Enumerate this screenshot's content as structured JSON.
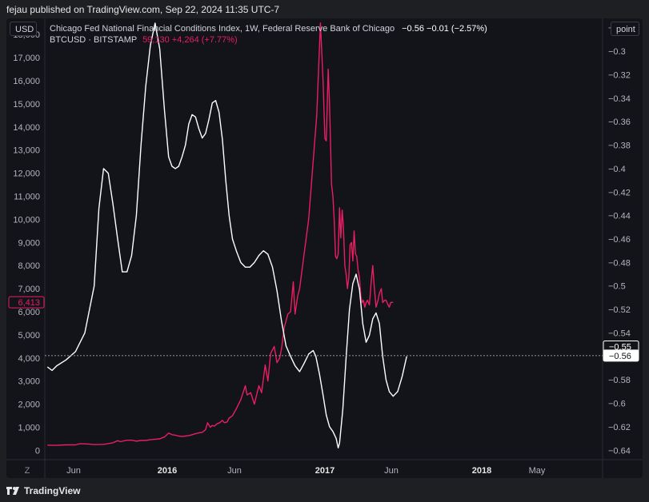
{
  "header": {
    "publisher_text": "fejau published on TradingView.com, Sep 22, 2024 11:35 UTC-7"
  },
  "toolbar": {
    "currency_label": "USD",
    "scale_label": "point",
    "z_label": "Z"
  },
  "legend": {
    "nfci_name": "Chicago Fed National Financial Conditions Index, 1W, Federal Reserve Bank of Chicago",
    "nfci_values": "−0.56  −0.01 (−2.57%)",
    "btc_name": "BTCUSD · BITSTAMP",
    "btc_values": "59,130  +4,264 (+7.77%)"
  },
  "footer": {
    "brand": "TradingView"
  },
  "colors": {
    "btc": "#e91e63",
    "nfci": "#ffffff",
    "background": "#131419"
  },
  "chart_data": {
    "type": "line",
    "x_tick_labels": [
      "Jun",
      "2016",
      "Jun",
      "2017",
      "Jun",
      "2018",
      "May"
    ],
    "left_axis": {
      "ticks": [
        0,
        1000,
        2000,
        3000,
        4000,
        5000,
        6000,
        7000,
        8000,
        9000,
        10000,
        11000,
        12000,
        13000,
        14000,
        15000,
        16000,
        17000,
        18000
      ],
      "tick_labels": [
        "0",
        "1,000",
        "2,000",
        "3,000",
        "4,000",
        "5,000",
        "6,000",
        "7,000",
        "8,000",
        "9,000",
        "10,000",
        "11,000",
        "12,000",
        "13,000",
        "14,000",
        "15,000",
        "16,000",
        "17,000",
        "18,000"
      ],
      "range": [
        -400,
        18700
      ],
      "last_value_label": "6,413"
    },
    "right_axis": {
      "ticks": [
        -0.28,
        -0.3,
        -0.32,
        -0.34,
        -0.36,
        -0.38,
        -0.4,
        -0.42,
        -0.44,
        -0.46,
        -0.48,
        -0.5,
        -0.52,
        -0.54,
        -0.56,
        -0.58,
        -0.6,
        -0.62,
        -0.64
      ],
      "tick_labels": [
        "−0.28",
        "−0.3",
        "−0.32",
        "−0.34",
        "−0.36",
        "−0.38",
        "−0.4",
        "−0.42",
        "−0.44",
        "−0.46",
        "−0.48",
        "−0.5",
        "−0.52",
        "−0.54",
        "−0.56",
        "−0.58",
        "−0.6",
        "−0.62",
        "−0.64"
      ],
      "range": [
        -0.648,
        -0.272
      ],
      "marker_labels": [
        "−0.55",
        "−0.56"
      ],
      "marker_values": [
        -0.5516,
        -0.5594
      ]
    },
    "series": [
      {
        "name": "BTCUSD · BITSTAMP",
        "axis": "left",
        "color": "#e91e63",
        "values": [
          [
            0,
            230
          ],
          [
            0.05,
            220
          ],
          [
            0.1,
            220
          ],
          [
            0.2,
            240
          ],
          [
            0.3,
            240
          ],
          [
            0.35,
            290
          ],
          [
            0.45,
            270
          ],
          [
            0.5,
            250
          ],
          [
            0.6,
            260
          ],
          [
            0.7,
            330
          ],
          [
            0.75,
            420
          ],
          [
            0.78,
            380
          ],
          [
            0.85,
            440
          ],
          [
            0.9,
            440
          ],
          [
            0.95,
            400
          ],
          [
            1.0,
            430
          ],
          [
            1.05,
            430
          ],
          [
            1.1,
            460
          ],
          [
            1.2,
            500
          ],
          [
            1.25,
            580
          ],
          [
            1.3,
            750
          ],
          [
            1.35,
            680
          ],
          [
            1.4,
            660
          ],
          [
            1.45,
            620
          ],
          [
            1.5,
            600
          ],
          [
            1.55,
            620
          ],
          [
            1.6,
            640
          ],
          [
            1.65,
            680
          ],
          [
            1.7,
            720
          ],
          [
            1.75,
            760
          ],
          [
            1.8,
            780
          ],
          [
            1.85,
            900
          ],
          [
            1.88,
            1200
          ],
          [
            1.92,
            1000
          ],
          [
            1.95,
            1080
          ],
          [
            1.98,
            1050
          ],
          [
            2.02,
            1150
          ],
          [
            2.06,
            1200
          ],
          [
            2.1,
            1300
          ],
          [
            2.13,
            1200
          ],
          [
            2.17,
            1230
          ],
          [
            2.2,
            1400
          ],
          [
            2.25,
            1500
          ],
          [
            2.3,
            1800
          ],
          [
            2.35,
            2200
          ],
          [
            2.4,
            2800
          ],
          [
            2.42,
            2400
          ],
          [
            2.46,
            2500
          ],
          [
            2.5,
            2000
          ],
          [
            2.55,
            2800
          ],
          [
            2.58,
            2500
          ],
          [
            2.62,
            3700
          ],
          [
            2.65,
            3000
          ],
          [
            2.68,
            4200
          ],
          [
            2.72,
            4500
          ],
          [
            2.75,
            3800
          ],
          [
            2.78,
            4000
          ],
          [
            2.8,
            4400
          ],
          [
            2.83,
            5300
          ],
          [
            2.87,
            5900
          ],
          [
            2.9,
            6000
          ],
          [
            2.93,
            7300
          ],
          [
            2.95,
            5900
          ],
          [
            2.98,
            6700
          ],
          [
            3.0,
            7000
          ],
          [
            3.05,
            8500
          ],
          [
            3.1,
            10000
          ],
          [
            3.15,
            12500
          ],
          [
            3.19,
            14500
          ],
          [
            3.21,
            16500
          ],
          [
            3.23,
            18500
          ],
          [
            3.26,
            16000
          ],
          [
            3.28,
            13500
          ],
          [
            3.3,
            13400
          ],
          [
            3.33,
            16500
          ],
          [
            3.35,
            15000
          ],
          [
            3.38,
            11500
          ],
          [
            3.4,
            11000
          ],
          [
            3.42,
            10000
          ],
          [
            3.44,
            8400
          ],
          [
            3.46,
            8300
          ],
          [
            3.48,
            8500
          ],
          [
            3.5,
            10500
          ],
          [
            3.52,
            9200
          ],
          [
            3.54,
            10400
          ],
          [
            3.56,
            9600
          ],
          [
            3.58,
            8000
          ],
          [
            3.6,
            7600
          ],
          [
            3.62,
            7000
          ],
          [
            3.64,
            7500
          ],
          [
            3.66,
            8900
          ],
          [
            3.68,
            9000
          ],
          [
            3.7,
            8200
          ],
          [
            3.72,
            9500
          ],
          [
            3.74,
            8500
          ],
          [
            3.76,
            8400
          ],
          [
            3.78,
            7800
          ],
          [
            3.8,
            7500
          ],
          [
            3.82,
            6700
          ],
          [
            3.84,
            6400
          ],
          [
            3.86,
            6500
          ],
          [
            3.88,
            6200
          ],
          [
            3.9,
            6400
          ],
          [
            3.92,
            6500
          ],
          [
            3.95,
            6300
          ],
          [
            3.98,
            7400
          ],
          [
            4.0,
            8000
          ],
          [
            4.02,
            7200
          ],
          [
            4.05,
            6200
          ],
          [
            4.08,
            6500
          ],
          [
            4.1,
            6800
          ],
          [
            4.13,
            7000
          ],
          [
            4.15,
            6400
          ],
          [
            4.18,
            6500
          ],
          [
            4.2,
            6500
          ],
          [
            4.23,
            6300
          ],
          [
            4.25,
            6200
          ],
          [
            4.27,
            6400
          ],
          [
            4.3,
            6413
          ]
        ]
      },
      {
        "name": "Chicago Fed National Financial Conditions Index",
        "axis": "right",
        "color": "#ffffff",
        "values": [
          [
            0,
            -0.569
          ],
          [
            0.05,
            -0.572
          ],
          [
            0.1,
            -0.568
          ],
          [
            0.2,
            -0.563
          ],
          [
            0.3,
            -0.556
          ],
          [
            0.4,
            -0.54
          ],
          [
            0.5,
            -0.5
          ],
          [
            0.55,
            -0.434
          ],
          [
            0.6,
            -0.4
          ],
          [
            0.65,
            -0.404
          ],
          [
            0.7,
            -0.43
          ],
          [
            0.75,
            -0.46
          ],
          [
            0.8,
            -0.488
          ],
          [
            0.85,
            -0.488
          ],
          [
            0.9,
            -0.474
          ],
          [
            0.95,
            -0.44
          ],
          [
            1.0,
            -0.38
          ],
          [
            1.05,
            -0.33
          ],
          [
            1.1,
            -0.295
          ],
          [
            1.15,
            -0.276
          ],
          [
            1.2,
            -0.298
          ],
          [
            1.25,
            -0.35
          ],
          [
            1.3,
            -0.39
          ],
          [
            1.35,
            -0.398
          ],
          [
            1.4,
            -0.4
          ],
          [
            1.45,
            -0.398
          ],
          [
            1.5,
            -0.39
          ],
          [
            1.55,
            -0.38
          ],
          [
            1.6,
            -0.362
          ],
          [
            1.65,
            -0.354
          ],
          [
            1.7,
            -0.356
          ],
          [
            1.75,
            -0.366
          ],
          [
            1.8,
            -0.374
          ],
          [
            1.85,
            -0.37
          ],
          [
            1.9,
            -0.358
          ],
          [
            1.95,
            -0.344
          ],
          [
            2.0,
            -0.342
          ],
          [
            2.05,
            -0.352
          ],
          [
            2.1,
            -0.375
          ],
          [
            2.15,
            -0.41
          ],
          [
            2.2,
            -0.44
          ],
          [
            2.25,
            -0.46
          ],
          [
            2.3,
            -0.47
          ],
          [
            2.35,
            -0.48
          ],
          [
            2.4,
            -0.484
          ],
          [
            2.45,
            -0.484
          ],
          [
            2.5,
            -0.48
          ],
          [
            2.55,
            -0.474
          ],
          [
            2.6,
            -0.47
          ],
          [
            2.65,
            -0.473
          ],
          [
            2.7,
            -0.484
          ],
          [
            2.75,
            -0.504
          ],
          [
            2.8,
            -0.53
          ],
          [
            2.85,
            -0.551
          ],
          [
            2.9,
            -0.56
          ],
          [
            2.95,
            -0.568
          ],
          [
            3.0,
            -0.573
          ],
          [
            3.05,
            -0.566
          ],
          [
            3.1,
            -0.558
          ],
          [
            3.15,
            -0.555
          ],
          [
            3.18,
            -0.56
          ],
          [
            3.22,
            -0.575
          ],
          [
            3.26,
            -0.593
          ],
          [
            3.3,
            -0.61
          ],
          [
            3.35,
            -0.62
          ],
          [
            3.4,
            -0.624
          ],
          [
            3.45,
            -0.63
          ],
          [
            3.48,
            -0.638
          ],
          [
            3.5,
            -0.634
          ],
          [
            3.55,
            -0.605
          ],
          [
            3.6,
            -0.56
          ],
          [
            3.65,
            -0.52
          ],
          [
            3.7,
            -0.498
          ],
          [
            3.75,
            -0.49
          ],
          [
            3.8,
            -0.503
          ],
          [
            3.85,
            -0.532
          ],
          [
            3.9,
            -0.548
          ],
          [
            3.95,
            -0.542
          ],
          [
            4.0,
            -0.528
          ],
          [
            4.05,
            -0.523
          ],
          [
            4.1,
            -0.532
          ],
          [
            4.15,
            -0.56
          ],
          [
            4.2,
            -0.58
          ],
          [
            4.25,
            -0.59
          ],
          [
            4.3,
            -0.594
          ],
          [
            4.35,
            -0.59
          ],
          [
            4.4,
            -0.577
          ],
          [
            4.45,
            -0.56
          ]
        ]
      }
    ]
  }
}
